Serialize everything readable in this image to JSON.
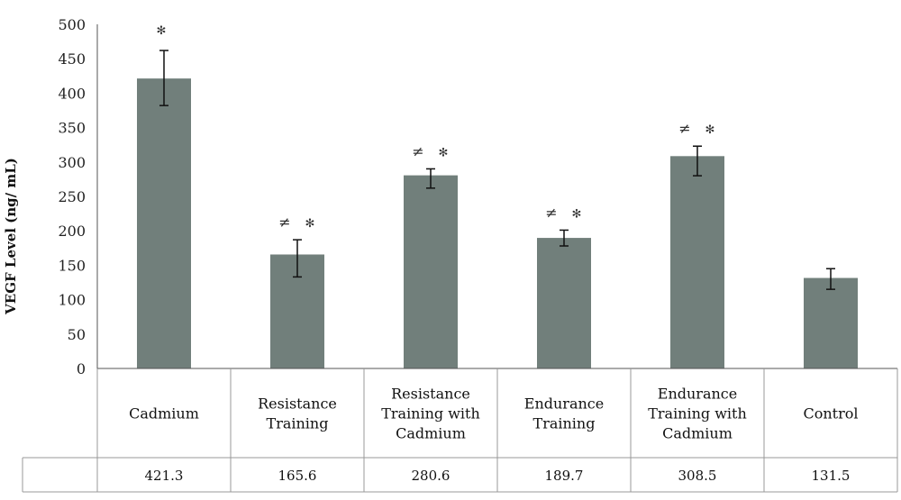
{
  "chart_data": {
    "type": "bar",
    "ylabel": "VEGF Level (ng/ mL)",
    "ylim": [
      0,
      500
    ],
    "yticks": [
      0,
      50,
      100,
      150,
      200,
      250,
      300,
      350,
      400,
      450,
      500
    ],
    "bar_color": "#717f7b",
    "categories": [
      [
        "Cadmium"
      ],
      [
        "Resistance",
        "Training"
      ],
      [
        "Resistance",
        "Training with",
        "Cadmium"
      ],
      [
        "Endurance",
        "Training"
      ],
      [
        "Endurance",
        "Training with",
        "Cadmium"
      ],
      [
        "Control"
      ]
    ],
    "values": [
      421.3,
      165.6,
      280.6,
      189.7,
      308.5,
      131.5
    ],
    "value_labels": [
      "421.3",
      "165.6",
      "280.6",
      "189.7",
      "308.5",
      "131.5"
    ],
    "error_bars": [
      [
        382,
        462
      ],
      [
        133,
        187
      ],
      [
        262,
        290
      ],
      [
        178,
        201
      ],
      [
        280,
        323
      ],
      [
        115,
        145
      ]
    ],
    "annotations": [
      {
        "neq": "",
        "star": "✻"
      },
      {
        "neq": "≠",
        "star": "✻"
      },
      {
        "neq": "≠",
        "star": "✻"
      },
      {
        "neq": "≠",
        "star": "✻"
      },
      {
        "neq": "≠",
        "star": "✻"
      },
      {
        "neq": "",
        "star": ""
      }
    ]
  }
}
